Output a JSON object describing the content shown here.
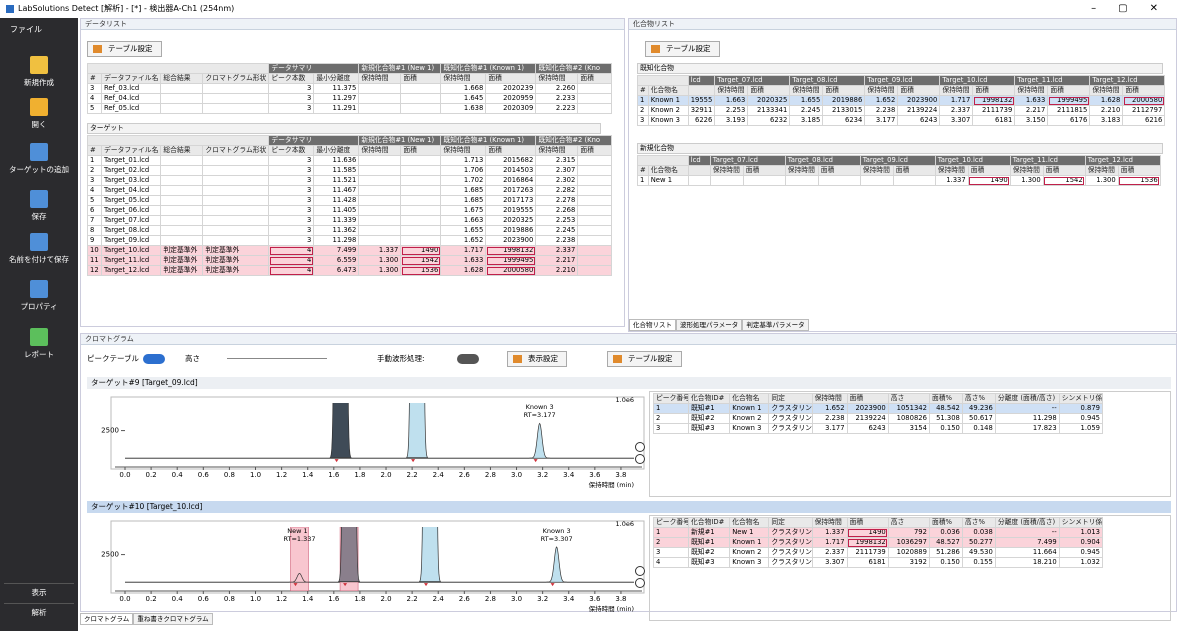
{
  "window": {
    "title": "LabSolutions Detect [解析] - [*] - 検出器A-Ch1 (254nm)"
  },
  "sidebar": {
    "menu": "ファイル",
    "items": [
      "新規作成",
      "開く",
      "ターゲットの追加",
      "保存",
      "名前を付けて保存",
      "プロパティ",
      "レポート"
    ],
    "bottom": [
      "表示",
      "解析"
    ]
  },
  "data_list": {
    "title": "データリスト",
    "button": "テーブル設定",
    "group_headers": [
      "データサマリ",
      "新規化合物#1 (New 1)",
      "既知化合物#1 (Known 1)",
      "既知化合物#2 (Kno"
    ],
    "columns": [
      "#",
      "データファイル名",
      "総合結果",
      "クロマトグラム形状",
      "ピーク本数",
      "最小分離度",
      "保持時間",
      "面積",
      "保持時間",
      "面積",
      "保持時間",
      "面積"
    ],
    "reference": {
      "rows": [
        {
          "cells": [
            "3",
            "Ref_03.lcd",
            null,
            null,
            "3",
            "11.375",
            null,
            null,
            "1.668",
            "2020239",
            "2.260",
            null
          ]
        },
        {
          "cells": [
            "4",
            "Ref_04.lcd",
            null,
            null,
            "3",
            "11.297",
            null,
            null,
            "1.645",
            "2020959",
            "2.233",
            null
          ]
        },
        {
          "cells": [
            "5",
            "Ref_05.lcd",
            null,
            null,
            "3",
            "11.291",
            null,
            null,
            "1.638",
            "2020309",
            "2.223",
            null
          ]
        }
      ]
    },
    "target": {
      "label": "ターゲット",
      "rows": [
        {
          "cells": [
            "1",
            "Target_01.lcd",
            null,
            null,
            "3",
            "11.636",
            null,
            null,
            "1.713",
            "2015682",
            "2.315",
            null
          ]
        },
        {
          "cells": [
            "2",
            "Target_02.lcd",
            null,
            null,
            "3",
            "11.585",
            null,
            null,
            "1.706",
            "2014503",
            "2.307",
            null
          ]
        },
        {
          "cells": [
            "3",
            "Target_03.lcd",
            null,
            null,
            "3",
            "11.521",
            null,
            null,
            "1.702",
            "2016864",
            "2.302",
            null
          ]
        },
        {
          "cells": [
            "4",
            "Target_04.lcd",
            null,
            null,
            "3",
            "11.467",
            null,
            null,
            "1.685",
            "2017263",
            "2.282",
            null
          ]
        },
        {
          "cells": [
            "5",
            "Target_05.lcd",
            null,
            null,
            "3",
            "11.428",
            null,
            null,
            "1.685",
            "2017173",
            "2.278",
            null
          ]
        },
        {
          "cells": [
            "6",
            "Target_06.lcd",
            null,
            null,
            "3",
            "11.405",
            null,
            null,
            "1.675",
            "2019555",
            "2.268",
            null
          ]
        },
        {
          "cells": [
            "7",
            "Target_07.lcd",
            null,
            null,
            "3",
            "11.339",
            null,
            null,
            "1.663",
            "2020325",
            "2.253",
            null
          ]
        },
        {
          "cells": [
            "8",
            "Target_08.lcd",
            null,
            null,
            "3",
            "11.362",
            null,
            null,
            "1.655",
            "2019886",
            "2.245",
            null
          ]
        },
        {
          "cells": [
            "9",
            "Target_09.lcd",
            null,
            null,
            "3",
            "11.298",
            null,
            null,
            "1.652",
            "2023900",
            "2.238",
            null
          ]
        },
        {
          "cells": [
            "10",
            "Target_10.lcd",
            "判定基準外",
            "判定基準外",
            "4",
            "7.499",
            "1.337",
            "1490",
            "1.717",
            "1998132",
            "2.337",
            null
          ],
          "alert": true,
          "boxed": [
            4,
            7,
            9
          ]
        },
        {
          "cells": [
            "11",
            "Target_11.lcd",
            "判定基準外",
            "判定基準外",
            "4",
            "6.559",
            "1.300",
            "1542",
            "1.633",
            "1999495",
            "2.217",
            null
          ],
          "alert": true,
          "boxed": [
            4,
            7,
            9
          ]
        },
        {
          "cells": [
            "12",
            "Target_12.lcd",
            "判定基準外",
            "判定基準外",
            "4",
            "6.473",
            "1.300",
            "1536",
            "1.628",
            "2000580",
            "2.210",
            null
          ],
          "alert": true,
          "boxed": [
            4,
            7,
            9
          ]
        }
      ]
    }
  },
  "compound_list": {
    "title": "化合物リスト",
    "button": "テーブル設定",
    "group_headers": [
      "lcd",
      "Target_07.lcd",
      "Target_08.lcd",
      "Target_09.lcd",
      "Target_10.lcd",
      "Target_11.lcd",
      "Target_12.lcd"
    ],
    "columns": [
      "#",
      "化合物名",
      null,
      "保持時間",
      "面積",
      "保持時間",
      "面積",
      "保持時間",
      "面積",
      "保持時間",
      "面積",
      "保持時間",
      "面積",
      "保持時間",
      "面積"
    ],
    "known": {
      "label": "既知化合物",
      "rows": [
        {
          "cells": [
            "1",
            "Known 1",
            "19555",
            "1.663",
            "2020325",
            "1.655",
            "2019886",
            "1.652",
            "2023900",
            "1.717",
            "1998132",
            "1.633",
            "1999495",
            "1.628",
            "2000580"
          ],
          "selected": true,
          "boxed": [
            10,
            12,
            14
          ]
        },
        {
          "cells": [
            "2",
            "Known 2",
            "32911",
            "2.253",
            "2133341",
            "2.245",
            "2133015",
            "2.238",
            "2139224",
            "2.337",
            "2111739",
            "2.217",
            "2111815",
            "2.210",
            "2112797"
          ]
        },
        {
          "cells": [
            "3",
            "Known 3",
            "6226",
            "3.193",
            "6232",
            "3.185",
            "6234",
            "3.177",
            "6243",
            "3.307",
            "6181",
            "3.150",
            "6176",
            "3.183",
            "6216"
          ]
        }
      ]
    },
    "new": {
      "label": "新規化合物",
      "rows": [
        {
          "cells": [
            "1",
            "New 1",
            null,
            null,
            null,
            null,
            null,
            null,
            null,
            "1.337",
            "1490",
            "1.300",
            "1542",
            "1.300",
            "1536"
          ],
          "boxed": [
            10,
            12,
            14
          ]
        }
      ]
    },
    "tabs": [
      "化合物リスト",
      "波形処理パラメータ",
      "判定基準パラメータ"
    ]
  },
  "chromatogram": {
    "title": "クロマトグラム",
    "toolbar": {
      "peak_table": "ピークテーブル",
      "height": "高さ",
      "manual": "手動波形処理:",
      "display": "表示設定",
      "table": "テーブル設定"
    },
    "x_label": "保持時間 (min)",
    "scale_label": "1.0e6",
    "xlim": [
      0,
      3.9
    ],
    "xticks": [
      {
        "value": 0,
        "label": "0.0"
      },
      0.2,
      0.4,
      0.6,
      0.8,
      {
        "value": 1,
        "label": "1.0"
      },
      1.2,
      1.4,
      1.6,
      1.8,
      {
        "value": 2,
        "label": "2.0"
      },
      2.2,
      2.4,
      2.6,
      2.8,
      {
        "value": 3,
        "label": "3.0"
      },
      3.2,
      3.4,
      3.6,
      3.8
    ],
    "ylim": [
      -800,
      5000
    ],
    "yticks": [
      2500
    ],
    "table_columns": [
      "ピーク番号",
      "化合物ID#",
      "化合物名",
      "同定",
      "保持時間",
      "面積",
      "高さ",
      "面積%",
      "高さ%",
      "分離度 (面積/高さ)",
      "シンメトリ係数"
    ],
    "panels": [
      {
        "title": "ターゲット#9 [Target_09.lcd]",
        "peaks": [
          {
            "rt": 1.652,
            "height": 1051342,
            "fill": "#3f4b57"
          },
          {
            "rt": 2.238,
            "height": 1080826,
            "fill": "#bfe0ee"
          },
          {
            "rt": 3.177,
            "height": 3154,
            "fill": "#bfe0ee"
          }
        ],
        "annotations": [
          {
            "name": "Known 3",
            "rt_label": "RT=3.177",
            "rt": 3.177
          }
        ],
        "rows": [
          {
            "cells": [
              "1",
              "既知#1",
              "Known 1",
              "クラスタリング",
              "1.652",
              "2023900",
              "1051342",
              "48.542",
              "49.236",
              "--",
              "0.879"
            ],
            "selected": true
          },
          {
            "cells": [
              "2",
              "既知#2",
              "Known 2",
              "クラスタリング",
              "2.238",
              "2139224",
              "1080826",
              "51.308",
              "50.617",
              "11.298",
              "0.945"
            ]
          },
          {
            "cells": [
              "3",
              "既知#3",
              "Known 3",
              "クラスタリング",
              "3.177",
              "6243",
              "3154",
              "0.150",
              "0.148",
              "17.823",
              "1.059"
            ]
          }
        ]
      },
      {
        "title": "ターゲット#10 [Target_10.lcd]",
        "selected": true,
        "peaks": [
          {
            "rt": 1.337,
            "height": 792,
            "fill": "#f7c6cf",
            "band": "#f5b3bf"
          },
          {
            "rt": 1.717,
            "height": 1036297,
            "fill": "#8a7f8c",
            "band": "#f5b3bf"
          },
          {
            "rt": 2.337,
            "height": 1020889,
            "fill": "#bfe0ee"
          },
          {
            "rt": 3.307,
            "height": 3192,
            "fill": "#bfe0ee"
          }
        ],
        "annotations": [
          {
            "name": "New 1",
            "rt_label": "RT=1.337",
            "rt": 1.337
          },
          {
            "name": "Known 3",
            "rt_label": "RT=3.307",
            "rt": 3.307
          }
        ],
        "rows": [
          {
            "cells": [
              "1",
              "新規#1",
              "New 1",
              "クラスタリング",
              "1.337",
              "1490",
              "792",
              "0.036",
              "0.038",
              "--",
              "1.013"
            ],
            "alert": true,
            "boxed": [
              5
            ]
          },
          {
            "cells": [
              "2",
              "既知#1",
              "Known 1",
              "クラスタリング",
              "1.717",
              "1998132",
              "1036297",
              "48.527",
              "50.277",
              "7.499",
              "0.904"
            ],
            "alert": true,
            "boxed": [
              5
            ]
          },
          {
            "cells": [
              "3",
              "既知#2",
              "Known 2",
              "クラスタリング",
              "2.337",
              "2111739",
              "1020889",
              "51.286",
              "49.530",
              "11.664",
              "0.945"
            ]
          },
          {
            "cells": [
              "4",
              "既知#3",
              "Known 3",
              "クラスタリング",
              "3.307",
              "6181",
              "3192",
              "0.150",
              "0.155",
              "18.210",
              "1.032"
            ]
          }
        ]
      }
    ],
    "tabs": [
      "クロマトグラム",
      "重ね書きクロマトグラム"
    ]
  }
}
